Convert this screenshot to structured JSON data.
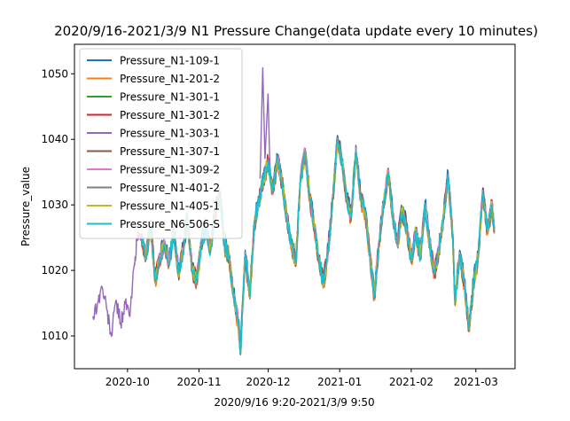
{
  "chart_data": {
    "type": "line",
    "title": "2020/9/16-2021/3/9 N1 Pressure Change(data update every 10 minutes)",
    "xlabel": "2020/9/16 9:20-2021/3/9 9:50",
    "ylabel": "Pressure_value",
    "x_range": [
      "2020-09-08",
      "2021-03-18"
    ],
    "ylim": [
      1005.0,
      1054.5
    ],
    "x_ticks": [
      {
        "date": "2020-10-01",
        "label": "2020-10"
      },
      {
        "date": "2020-11-01",
        "label": "2020-11"
      },
      {
        "date": "2020-12-01",
        "label": "2020-12"
      },
      {
        "date": "2021-01-01",
        "label": "2021-01"
      },
      {
        "date": "2021-02-01",
        "label": "2021-02"
      },
      {
        "date": "2021-03-01",
        "label": "2021-03"
      }
    ],
    "y_ticks": [
      1010,
      1020,
      1030,
      1040,
      1050
    ],
    "grid": false,
    "legend_position": "top-left",
    "series": [
      {
        "name": "Pressure_N1-109-1",
        "color": "#1f77b4",
        "offset": 0.6
      },
      {
        "name": "Pressure_N1-201-2",
        "color": "#ff7f0e",
        "offset": -0.4
      },
      {
        "name": "Pressure_N1-301-1",
        "color": "#2ca02c",
        "offset": 0.1
      },
      {
        "name": "Pressure_N1-301-2",
        "color": "#d62728",
        "offset": 0.3
      },
      {
        "name": "Pressure_N1-303-1",
        "color": "#9467bd",
        "offset": 0.0
      },
      {
        "name": "Pressure_N1-307-1",
        "color": "#8c564b",
        "offset": -0.2
      },
      {
        "name": "Pressure_N1-309-2",
        "color": "#e377c2",
        "offset": 0.2
      },
      {
        "name": "Pressure_N1-401-2",
        "color": "#7f7f7f",
        "offset": -0.1
      },
      {
        "name": "Pressure_N1-405-1",
        "color": "#bcbd22",
        "offset": 0.0
      },
      {
        "name": "Pressure_N6-506-S",
        "color": "#17becf",
        "offset": 0.0
      }
    ],
    "early_series_name": "Pressure_N1-303-1",
    "early_points": [
      [
        "2020-09-16",
        1013.0
      ],
      [
        "2020-09-18",
        1015.0
      ],
      [
        "2020-09-20",
        1017.5
      ],
      [
        "2020-09-22",
        1014.0
      ],
      [
        "2020-09-24",
        1010.0
      ],
      [
        "2020-09-26",
        1015.5
      ],
      [
        "2020-09-28",
        1012.0
      ],
      [
        "2020-09-30",
        1015.0
      ],
      [
        "2020-10-02",
        1013.0
      ],
      [
        "2020-10-04",
        1021.0
      ],
      [
        "2020-10-05",
        1024.5
      ],
      [
        "2020-10-07",
        1025.5
      ]
    ],
    "common_points": [
      [
        "2020-10-07",
        1025.0
      ],
      [
        "2020-10-09",
        1022.0
      ],
      [
        "2020-10-11",
        1027.0
      ],
      [
        "2020-10-13",
        1018.5
      ],
      [
        "2020-10-15",
        1022.0
      ],
      [
        "2020-10-17",
        1024.0
      ],
      [
        "2020-10-19",
        1021.0
      ],
      [
        "2020-10-21",
        1026.0
      ],
      [
        "2020-10-23",
        1019.5
      ],
      [
        "2020-10-25",
        1023.0
      ],
      [
        "2020-10-27",
        1027.5
      ],
      [
        "2020-10-29",
        1020.0
      ],
      [
        "2020-10-31",
        1018.5
      ],
      [
        "2020-11-02",
        1024.0
      ],
      [
        "2020-11-04",
        1026.5
      ],
      [
        "2020-11-06",
        1023.0
      ],
      [
        "2020-11-08",
        1029.0
      ],
      [
        "2020-11-10",
        1031.5
      ],
      [
        "2020-11-12",
        1024.0
      ],
      [
        "2020-11-14",
        1022.0
      ],
      [
        "2020-11-16",
        1016.0
      ],
      [
        "2020-11-18",
        1012.0
      ],
      [
        "2020-11-19",
        1007.5
      ],
      [
        "2020-11-21",
        1022.5
      ],
      [
        "2020-11-23",
        1016.0
      ],
      [
        "2020-11-25",
        1027.0
      ],
      [
        "2020-11-27",
        1030.5
      ],
      [
        "2020-11-29",
        1034.0
      ],
      [
        "2020-12-01",
        1036.5
      ],
      [
        "2020-12-03",
        1032.0
      ],
      [
        "2020-12-05",
        1037.0
      ],
      [
        "2020-12-07",
        1033.5
      ],
      [
        "2020-12-09",
        1028.0
      ],
      [
        "2020-12-11",
        1024.0
      ],
      [
        "2020-12-13",
        1021.0
      ],
      [
        "2020-12-15",
        1034.0
      ],
      [
        "2020-12-17",
        1038.0
      ],
      [
        "2020-12-19",
        1031.0
      ],
      [
        "2020-12-21",
        1026.5
      ],
      [
        "2020-12-23",
        1021.5
      ],
      [
        "2020-12-25",
        1018.0
      ],
      [
        "2020-12-27",
        1023.0
      ],
      [
        "2020-12-29",
        1031.0
      ],
      [
        "2020-12-31",
        1040.0
      ],
      [
        "2021-01-02",
        1036.5
      ],
      [
        "2021-01-04",
        1031.0
      ],
      [
        "2021-01-06",
        1028.0
      ],
      [
        "2021-01-08",
        1038.5
      ],
      [
        "2021-01-10",
        1031.0
      ],
      [
        "2021-01-12",
        1029.0
      ],
      [
        "2021-01-14",
        1022.5
      ],
      [
        "2021-01-16",
        1016.0
      ],
      [
        "2021-01-18",
        1024.0
      ],
      [
        "2021-01-20",
        1030.0
      ],
      [
        "2021-01-22",
        1035.0
      ],
      [
        "2021-01-24",
        1028.0
      ],
      [
        "2021-01-26",
        1024.0
      ],
      [
        "2021-01-28",
        1029.0
      ],
      [
        "2021-01-30",
        1026.5
      ],
      [
        "2021-02-01",
        1021.5
      ],
      [
        "2021-02-03",
        1026.0
      ],
      [
        "2021-02-05",
        1022.0
      ],
      [
        "2021-02-07",
        1030.0
      ],
      [
        "2021-02-09",
        1024.0
      ],
      [
        "2021-02-11",
        1019.5
      ],
      [
        "2021-02-13",
        1023.0
      ],
      [
        "2021-02-15",
        1028.0
      ],
      [
        "2021-02-17",
        1034.5
      ],
      [
        "2021-02-19",
        1025.0
      ],
      [
        "2021-02-20",
        1015.0
      ],
      [
        "2021-02-22",
        1022.5
      ],
      [
        "2021-02-24",
        1018.0
      ],
      [
        "2021-02-26",
        1011.0
      ],
      [
        "2021-02-28",
        1018.0
      ],
      [
        "2021-03-02",
        1022.0
      ],
      [
        "2021-03-04",
        1032.0
      ],
      [
        "2021-03-06",
        1026.0
      ],
      [
        "2021-03-08",
        1030.0
      ],
      [
        "2021-03-09",
        1026.0
      ]
    ],
    "annotation_spike": [
      "2020-11-29",
      1051.0
    ]
  }
}
